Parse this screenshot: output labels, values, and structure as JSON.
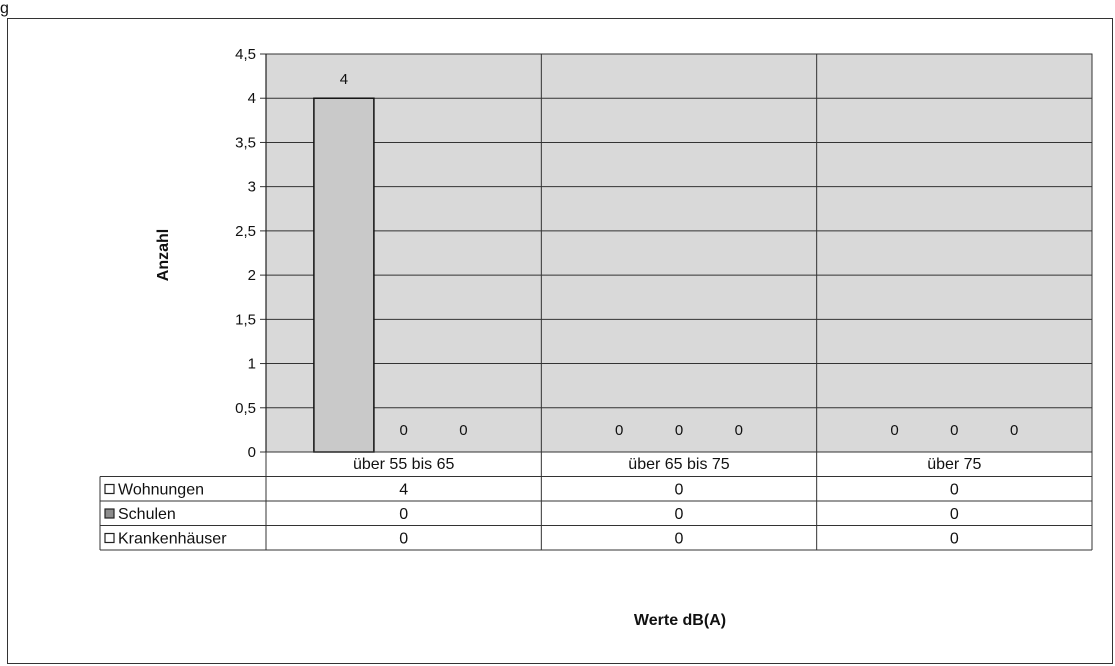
{
  "page": {
    "corner_text": "g"
  },
  "chart_data": {
    "type": "bar",
    "categories": [
      "über 55 bis 65",
      "über 65 bis 75",
      "über 75"
    ],
    "series": [
      {
        "name": "Wohnungen",
        "values": [
          4,
          0,
          0
        ],
        "color": "#c9c9c9",
        "legend_icon": "hollow-square-icon"
      },
      {
        "name": "Schulen",
        "values": [
          0,
          0,
          0
        ],
        "color": "#8c8c8c",
        "legend_icon": "filled-square-icon"
      },
      {
        "name": "Krankenhäuser",
        "values": [
          0,
          0,
          0
        ],
        "color": "#ffffff",
        "legend_icon": "hollow-square-icon"
      }
    ],
    "xlabel": "Werte dB(A)",
    "ylabel": "Anzahl",
    "ylim": [
      0,
      4.5
    ],
    "yticks": [
      "0",
      "0,5",
      "1",
      "1,5",
      "2",
      "2,5",
      "3",
      "3,5",
      "4",
      "4,5"
    ],
    "data_labels": [
      [
        "4",
        "0",
        "0"
      ],
      [
        "0",
        "0",
        "0"
      ],
      [
        "0",
        "0",
        "0"
      ]
    ],
    "grid": true,
    "legend": "data-table",
    "plot_background": "#d9d9d9"
  }
}
